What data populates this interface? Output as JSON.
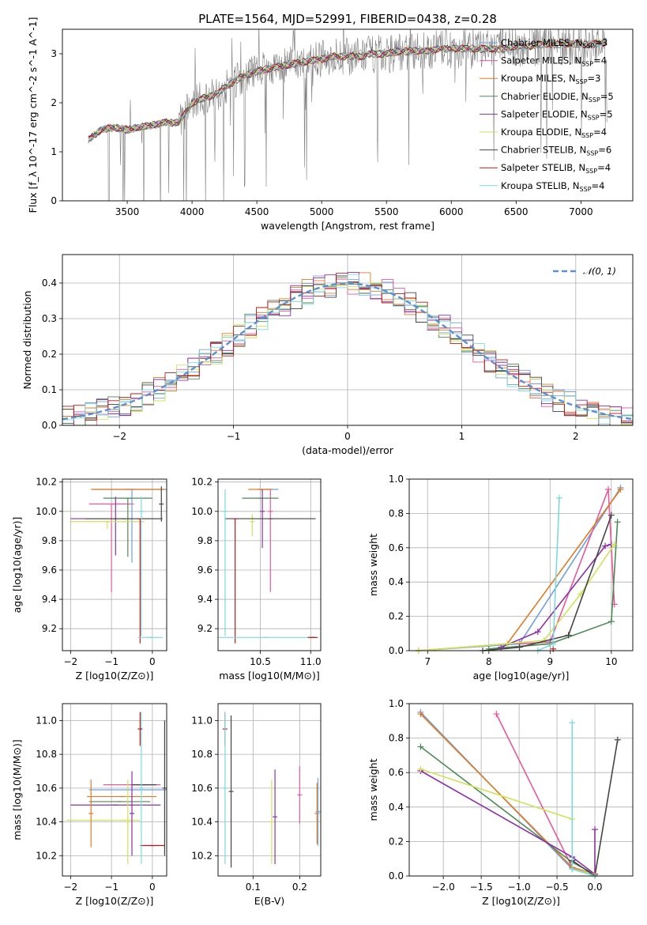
{
  "figure": {
    "title": "PLATE=1564, MJD=52991, FIBERID=0438, z=0.28"
  },
  "colors": {
    "chabrier_miles": "#6fa0dc",
    "salpeter_miles": "#e8589c",
    "kroupa_miles": "#e07c25",
    "chabrier_elodie": "#4e8a55",
    "salpeter_elodie": "#8e30a8",
    "kroupa_elodie": "#cfe35a",
    "chabrier_stelib": "#444444",
    "salpeter_stelib": "#bb1a1a",
    "kroupa_stelib": "#7fd8e0",
    "data_spectrum": "#808080",
    "gaussian": "#5b8fd6",
    "grid": "#b0b0b0"
  },
  "chart_data": [
    {
      "id": "spectrum",
      "type": "line",
      "title": "PLATE=1564, MJD=52991, FIBERID=0438, z=0.28",
      "xlabel": "wavelength [Angstrom, rest frame]",
      "ylabel": "Flux [f_λ 10^-17 erg cm^-2 s^-1 A^-1]",
      "xlim": [
        3000,
        7400
      ],
      "ylim": [
        0,
        3.5
      ],
      "xticks": [
        "3500",
        "4000",
        "4500",
        "5000",
        "5500",
        "6000",
        "6500",
        "7000"
      ],
      "yticks": [
        "0",
        "1",
        "2",
        "3"
      ],
      "grid": false,
      "legend_position": "top-right",
      "model_continuum": {
        "x": [
          3200,
          3300,
          3400,
          3500,
          3600,
          3700,
          3800,
          3900,
          4000,
          4100,
          4200,
          4300,
          4400,
          4500,
          4600,
          4700,
          4800,
          4900,
          5000,
          5100,
          5200,
          5300,
          5400,
          5500,
          5600,
          5700,
          5800,
          5900,
          6000,
          6100,
          6200,
          6300,
          6400,
          6500,
          6600,
          6700,
          6800,
          6900,
          7000,
          7100,
          7200
        ],
        "y": [
          1.25,
          1.45,
          1.5,
          1.45,
          1.5,
          1.55,
          1.6,
          1.6,
          2.0,
          2.1,
          2.2,
          2.4,
          2.55,
          2.65,
          2.7,
          2.75,
          2.8,
          2.85,
          2.9,
          2.95,
          2.95,
          2.95,
          3.0,
          3.0,
          3.05,
          3.05,
          3.05,
          3.1,
          3.1,
          3.1,
          3.1,
          3.1,
          3.1,
          3.15,
          3.15,
          3.2,
          3.2,
          3.2,
          3.2,
          3.2,
          3.25
        ]
      },
      "series": [
        {
          "name": "Chabrier MILES, N_SSP=3",
          "label_main": "Chabrier MILES, N",
          "label_sub": "SSP",
          "label_tail": "=3"
        },
        {
          "name": "Salpeter MILES, N_SSP=4",
          "label_main": "Salpeter MILES, N",
          "label_sub": "SSP",
          "label_tail": "=4"
        },
        {
          "name": "Kroupa MILES, N_SSP=3",
          "label_main": "Kroupa MILES, N",
          "label_sub": "SSP",
          "label_tail": "=3"
        },
        {
          "name": "Chabrier ELODIE, N_SSP=5",
          "label_main": "Chabrier ELODIE, N",
          "label_sub": "SSP",
          "label_tail": "=5"
        },
        {
          "name": "Salpeter ELODIE, N_SSP=5",
          "label_main": "Salpeter ELODIE, N",
          "label_sub": "SSP",
          "label_tail": "=5"
        },
        {
          "name": "Kroupa ELODIE, N_SSP=4",
          "label_main": "Kroupa ELODIE, N",
          "label_sub": "SSP",
          "label_tail": "=4"
        },
        {
          "name": "Chabrier STELIB, N_SSP=6",
          "label_main": "Chabrier STELIB, N",
          "label_sub": "SSP",
          "label_tail": "=6"
        },
        {
          "name": "Salpeter STELIB, N_SSP=4",
          "label_main": "Salpeter STELIB, N",
          "label_sub": "SSP",
          "label_tail": "=4"
        },
        {
          "name": "Kroupa STELIB, N_SSP=4",
          "label_main": "Kroupa STELIB, N",
          "label_sub": "SSP",
          "label_tail": "=4"
        }
      ]
    },
    {
      "id": "residuals",
      "type": "line",
      "xlabel": "(data-model)/error",
      "ylabel": "Normed distribution",
      "xlim": [
        -2.5,
        2.5
      ],
      "ylim": [
        0,
        0.48
      ],
      "xticks": [
        "−2",
        "−1",
        "0",
        "1",
        "2"
      ],
      "yticks": [
        "0.0",
        "0.1",
        "0.2",
        "0.3",
        "0.4"
      ],
      "grid": true,
      "legend_position": "top-right",
      "reference_curve": {
        "name": "𝒩(0, 1)",
        "mean": 0,
        "sigma": 1
      },
      "histogram_bin_width": 0.1
    },
    {
      "id": "age_vs_Z",
      "type": "scatter",
      "xlabel": "Z [log10(Z/Z⊙)]",
      "ylabel": "age [log10(age/yr)]",
      "xlim": [
        -2.2,
        0.35
      ],
      "ylim": [
        9.05,
        10.22
      ],
      "xticks": [
        "−2",
        "−1",
        "0"
      ],
      "yticks": [
        "9.2",
        "9.4",
        "9.6",
        "9.8",
        "10.0",
        "10.2"
      ],
      "grid": true,
      "points": [
        {
          "x": -1.0,
          "y": 10.05,
          "xerr": 0.55,
          "yerr": [
            0.6,
            0.0
          ],
          "color": "salpeter_miles"
        },
        {
          "x": -0.5,
          "y": 10.15,
          "xerr": 0.95,
          "yerr": [
            0.5,
            0.0
          ],
          "color": "chabrier_miles"
        },
        {
          "x": -0.6,
          "y": 10.15,
          "xerr": 0.9,
          "yerr": [
            0.0,
            0.0
          ],
          "color": "kroupa_miles"
        },
        {
          "x": -0.6,
          "y": 10.09,
          "xerr": 0.6,
          "yerr": [
            0.4,
            0.0
          ],
          "color": "chabrier_elodie"
        },
        {
          "x": -0.9,
          "y": 9.95,
          "xerr": 1.1,
          "yerr": [
            0.25,
            0.15
          ],
          "color": "salpeter_elodie"
        },
        {
          "x": -1.1,
          "y": 9.93,
          "xerr": 0.9,
          "yerr": [
            0.05,
            0.0
          ],
          "color": "kroupa_elodie"
        },
        {
          "x": -0.7,
          "y": 9.95,
          "xerr": 0.95,
          "yerr": [
            0.0,
            0.0
          ],
          "color": "chabrier_stelib"
        },
        {
          "x": -0.3,
          "y": 9.95,
          "xerr": 0.0,
          "yerr": [
            0.85,
            0.0
          ],
          "color": "salpeter_stelib"
        },
        {
          "x": -0.05,
          "y": 9.14,
          "xerr": 0.3,
          "yerr": [
            0.0,
            0.0
          ],
          "color": "kroupa_stelib"
        },
        {
          "x": 0.22,
          "y": 10.05,
          "xerr": 0.0,
          "yerr": [
            0.12,
            0.12
          ],
          "color": "chabrier_stelib"
        },
        {
          "x": -0.27,
          "y": 10.0,
          "xerr": 0.0,
          "yerr": [
            0.85,
            0.1
          ],
          "color": "kroupa_stelib"
        }
      ]
    },
    {
      "id": "age_vs_mass",
      "type": "scatter",
      "xlabel": "mass [log10(M/M⊙)]",
      "ylabel": "",
      "xlim": [
        10.08,
        11.1
      ],
      "ylim": [
        9.05,
        10.22
      ],
      "xticks": [
        "10.5",
        "11.0"
      ],
      "yticks": [
        "9.2",
        "9.4",
        "9.6",
        "9.8",
        "10.0",
        "10.2"
      ],
      "grid": true,
      "points": [
        {
          "x": 10.58,
          "y": 10.15,
          "xerr": 0.1,
          "yerr": [
            0.0,
            0.0
          ],
          "color": "chabrier_miles"
        },
        {
          "x": 10.6,
          "y": 10.0,
          "xerr": 0.0,
          "yerr": [
            0.55,
            0.15
          ],
          "color": "salpeter_miles"
        },
        {
          "x": 10.5,
          "y": 10.15,
          "xerr": 0.12,
          "yerr": [
            0.0,
            0.0
          ],
          "color": "kroupa_miles"
        },
        {
          "x": 10.5,
          "y": 10.09,
          "xerr": 0.18,
          "yerr": [
            0.0,
            0.0
          ],
          "color": "chabrier_elodie"
        },
        {
          "x": 10.52,
          "y": 10.0,
          "xerr": 0.0,
          "yerr": [
            0.25,
            0.15
          ],
          "color": "salpeter_elodie"
        },
        {
          "x": 10.42,
          "y": 9.93,
          "xerr": 0.0,
          "yerr": [
            0.1,
            0.05
          ],
          "color": "kroupa_elodie"
        },
        {
          "x": 10.6,
          "y": 9.95,
          "xerr": 0.45,
          "yerr": [
            0.0,
            0.0
          ],
          "color": "chabrier_stelib"
        },
        {
          "x": 10.25,
          "y": 9.95,
          "xerr": 0.0,
          "yerr": [
            0.85,
            0.0
          ],
          "color": "salpeter_stelib"
        },
        {
          "x": 10.55,
          "y": 9.14,
          "xerr": 0.48,
          "yerr": [
            0.0,
            0.0
          ],
          "color": "kroupa_stelib"
        },
        {
          "x": 11.02,
          "y": 9.14,
          "xerr": 0.05,
          "yerr": [
            0.0,
            0.0
          ],
          "color": "salpeter_stelib"
        },
        {
          "x": 10.15,
          "y": 10.0,
          "xerr": 0.0,
          "yerr": [
            0.85,
            0.15
          ],
          "color": "kroupa_stelib"
        }
      ]
    },
    {
      "id": "weight_vs_age",
      "type": "line",
      "xlabel": "age [log10(age/yr)]",
      "ylabel": "mass weight",
      "xlim": [
        6.7,
        10.35
      ],
      "ylim": [
        0,
        1.0
      ],
      "xticks": [
        "7",
        "8",
        "9",
        "10"
      ],
      "yticks": [
        "0.0",
        "0.2",
        "0.4",
        "0.6",
        "0.8",
        "1.0"
      ],
      "grid": true,
      "series": [
        {
          "color": "chabrier_miles",
          "x": [
            6.85,
            8.5,
            10.15
          ],
          "y": [
            0.0,
            0.04,
            0.95
          ]
        },
        {
          "color": "salpeter_miles",
          "x": [
            8.5,
            9.0,
            9.95,
            10.05
          ],
          "y": [
            0.04,
            0.05,
            0.94,
            0.27
          ]
        },
        {
          "color": "kroupa_miles",
          "x": [
            6.85,
            8.3,
            10.15
          ],
          "y": [
            0.0,
            0.04,
            0.94
          ]
        },
        {
          "color": "chabrier_elodie",
          "x": [
            8.0,
            9.0,
            10.0,
            10.1
          ],
          "y": [
            0.01,
            0.04,
            0.17,
            0.75
          ]
        },
        {
          "color": "salpeter_elodie",
          "x": [
            8.2,
            8.8,
            9.9,
            10.0
          ],
          "y": [
            0.02,
            0.11,
            0.61,
            0.62
          ]
        },
        {
          "color": "kroupa_elodie",
          "x": [
            6.85,
            8.3,
            8.9,
            9.5,
            10.05
          ],
          "y": [
            0.0,
            0.04,
            0.06,
            0.33,
            0.62
          ]
        },
        {
          "color": "chabrier_stelib",
          "x": [
            7.9,
            8.5,
            9.3,
            10.0
          ],
          "y": [
            0.0,
            0.02,
            0.09,
            0.79
          ]
        },
        {
          "color": "salpeter_stelib",
          "x": [
            9.05
          ],
          "y": [
            0.01
          ]
        },
        {
          "color": "kroupa_stelib",
          "x": [
            8.8,
            9.05,
            9.15
          ],
          "y": [
            0.0,
            0.04,
            0.89
          ]
        }
      ]
    },
    {
      "id": "mass_vs_Z",
      "type": "scatter",
      "xlabel": "Z [log10(Z/Z⊙)]",
      "ylabel": "mass [log10(M/M⊙)]",
      "xlim": [
        -2.2,
        0.35
      ],
      "ylim": [
        10.08,
        11.1
      ],
      "xticks": [
        "−2",
        "−1",
        "0"
      ],
      "yticks": [
        "10.2",
        "10.4",
        "10.6",
        "10.8",
        "11.0"
      ],
      "grid": true,
      "points": [
        {
          "x": -0.6,
          "y": 10.59,
          "xerr": 0.95,
          "yerr": [
            0.0,
            0.0
          ],
          "color": "chabrier_miles"
        },
        {
          "x": -0.5,
          "y": 10.62,
          "xerr": 0.7,
          "yerr": [
            0.0,
            0.0
          ],
          "color": "salpeter_miles"
        },
        {
          "x": -0.75,
          "y": 10.55,
          "xerr": 0.85,
          "yerr": [
            0.0,
            0.0
          ],
          "color": "kroupa_miles"
        },
        {
          "x": -0.8,
          "y": 10.52,
          "xerr": 0.75,
          "yerr": [
            0.0,
            0.0
          ],
          "color": "chabrier_elodie"
        },
        {
          "x": -0.9,
          "y": 10.5,
          "xerr": 1.1,
          "yerr": [
            0.0,
            0.0
          ],
          "color": "salpeter_elodie"
        },
        {
          "x": -1.2,
          "y": 10.41,
          "xerr": 0.9,
          "yerr": [
            0.0,
            0.0
          ],
          "color": "kroupa_elodie"
        },
        {
          "x": -0.2,
          "y": 10.62,
          "xerr": 0.3,
          "yerr": [
            0.0,
            0.0
          ],
          "color": "chabrier_stelib"
        },
        {
          "x": 0.0,
          "y": 10.26,
          "xerr": 0.3,
          "yerr": [
            0.0,
            0.0
          ],
          "color": "salpeter_stelib"
        },
        {
          "x": -1.5,
          "y": 10.45,
          "xerr": 0.0,
          "yerr": [
            0.2,
            0.2
          ],
          "color": "kroupa_miles"
        },
        {
          "x": -0.6,
          "y": 10.4,
          "xerr": 0.0,
          "yerr": [
            0.25,
            0.25
          ],
          "color": "kroupa_elodie"
        },
        {
          "x": -0.5,
          "y": 10.45,
          "xerr": 0.0,
          "yerr": [
            0.25,
            0.25
          ],
          "color": "salpeter_elodie"
        },
        {
          "x": -0.27,
          "y": 10.6,
          "xerr": 0.0,
          "yerr": [
            0.45,
            0.45
          ],
          "color": "kroupa_stelib"
        },
        {
          "x": -0.3,
          "y": 10.95,
          "xerr": 0.0,
          "yerr": [
            0.1,
            0.1
          ],
          "color": "salpeter_stelib"
        },
        {
          "x": 0.3,
          "y": 10.6,
          "xerr": 0.0,
          "yerr": [
            0.4,
            0.4
          ],
          "color": "chabrier_stelib"
        }
      ]
    },
    {
      "id": "mass_vs_ebv",
      "type": "scatter",
      "xlabel": "E(B-V)",
      "ylabel": "",
      "xlim": [
        0.025,
        0.245
      ],
      "ylim": [
        10.08,
        11.1
      ],
      "xticks": [
        "0.1",
        "0.2"
      ],
      "yticks": [
        "10.2",
        "10.4",
        "10.6",
        "10.8",
        "11.0"
      ],
      "grid": true,
      "points": [
        {
          "x": 0.04,
          "y": 10.95,
          "xerr": 0.0,
          "yerr": [
            0.1,
            0.1
          ],
          "color": "salpeter_stelib"
        },
        {
          "x": 0.04,
          "y": 10.6,
          "xerr": 0.0,
          "yerr": [
            0.45,
            0.45
          ],
          "color": "kroupa_stelib"
        },
        {
          "x": 0.053,
          "y": 10.58,
          "xerr": 0.0,
          "yerr": [
            0.45,
            0.45
          ],
          "color": "chabrier_stelib"
        },
        {
          "x": 0.14,
          "y": 10.4,
          "xerr": 0.0,
          "yerr": [
            0.25,
            0.25
          ],
          "color": "kroupa_elodie"
        },
        {
          "x": 0.147,
          "y": 10.43,
          "xerr": 0.0,
          "yerr": [
            0.28,
            0.28
          ],
          "color": "salpeter_elodie"
        },
        {
          "x": 0.2,
          "y": 10.56,
          "xerr": 0.0,
          "yerr": [
            0.17,
            0.17
          ],
          "color": "salpeter_miles"
        },
        {
          "x": 0.237,
          "y": 10.45,
          "xerr": 0.0,
          "yerr": [
            0.18,
            0.18
          ],
          "color": "kroupa_miles"
        },
        {
          "x": 0.239,
          "y": 10.46,
          "xerr": 0.0,
          "yerr": [
            0.2,
            0.2
          ],
          "color": "chabrier_miles"
        }
      ]
    },
    {
      "id": "weight_vs_Z",
      "type": "line",
      "xlabel": "Z [log10(Z/Z⊙)]",
      "ylabel": "mass weight",
      "xlim": [
        -2.45,
        0.5
      ],
      "ylim": [
        0,
        1.0
      ],
      "xticks": [
        "−2.0",
        "−1.5",
        "−1.0",
        "−0.5",
        "0.0"
      ],
      "yticks": [
        "0.0",
        "0.2",
        "0.4",
        "0.6",
        "0.8",
        "1.0"
      ],
      "grid": true,
      "series": [
        {
          "color": "chabrier_miles",
          "x": [
            -2.3,
            -0.3,
            0.0
          ],
          "y": [
            0.95,
            0.04,
            0.01
          ]
        },
        {
          "color": "salpeter_miles",
          "x": [
            -1.3,
            -0.3,
            0.0
          ],
          "y": [
            0.94,
            0.05,
            0.01
          ]
        },
        {
          "color": "kroupa_miles",
          "x": [
            -2.3,
            -0.3,
            0.0
          ],
          "y": [
            0.94,
            0.05,
            0.01
          ]
        },
        {
          "color": "chabrier_elodie",
          "x": [
            -2.3,
            -0.3,
            0.0
          ],
          "y": [
            0.75,
            0.08,
            0.01
          ]
        },
        {
          "color": "salpeter_elodie",
          "x": [
            -2.3,
            -0.3,
            0.0,
            0.0
          ],
          "y": [
            0.61,
            0.11,
            0.01,
            0.27
          ]
        },
        {
          "color": "kroupa_elodie",
          "x": [
            -2.3,
            -0.3,
            -0.3,
            0.0
          ],
          "y": [
            0.62,
            0.33,
            0.04,
            0.01
          ]
        },
        {
          "color": "chabrier_stelib",
          "x": [
            -0.3,
            0.0,
            0.3
          ],
          "y": [
            0.09,
            0.0,
            0.79
          ]
        },
        {
          "color": "salpeter_stelib",
          "x": [
            0.0
          ],
          "y": [
            0.01
          ]
        },
        {
          "color": "kroupa_stelib",
          "x": [
            -0.3,
            -0.3,
            0.0
          ],
          "y": [
            0.89,
            0.04,
            0.0
          ]
        }
      ]
    }
  ]
}
